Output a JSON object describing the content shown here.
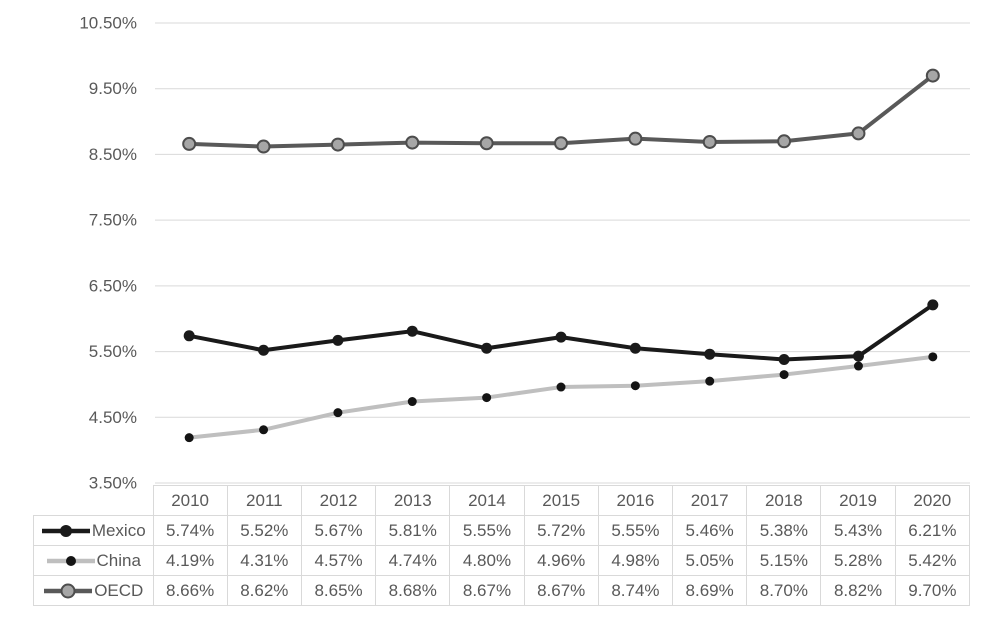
{
  "chart_data": {
    "type": "line",
    "title": "",
    "xlabel": "",
    "ylabel": "",
    "x": [
      "2010",
      "2011",
      "2012",
      "2013",
      "2014",
      "2015",
      "2016",
      "2017",
      "2018",
      "2019",
      "2020"
    ],
    "ylim": [
      3.5,
      10.5
    ],
    "grid": true,
    "legend_position": "table-rows-left",
    "yticks": [
      {
        "value": 10.5,
        "label": "10.50%"
      },
      {
        "value": 9.5,
        "label": "9.50%"
      },
      {
        "value": 8.5,
        "label": "8.50%"
      },
      {
        "value": 7.5,
        "label": "7.50%"
      },
      {
        "value": 6.5,
        "label": "6.50%"
      },
      {
        "value": 5.5,
        "label": "5.50%"
      },
      {
        "value": 4.5,
        "label": "4.50%"
      },
      {
        "value": 3.5,
        "label": "3.50%"
      }
    ],
    "series": [
      {
        "name": "Mexico",
        "values": [
          5.74,
          5.52,
          5.67,
          5.81,
          5.55,
          5.72,
          5.55,
          5.46,
          5.38,
          5.43,
          6.21
        ],
        "line_color": "#1a1a1a",
        "marker_fill": "#1a1a1a",
        "marker_stroke": "none",
        "marker_radius": 5.5,
        "line_width": 4
      },
      {
        "name": "China",
        "values": [
          4.19,
          4.31,
          4.57,
          4.74,
          4.8,
          4.96,
          4.98,
          5.05,
          5.15,
          5.28,
          5.42
        ],
        "line_color": "#bfbfbf",
        "marker_fill": "#141414",
        "marker_stroke": "none",
        "marker_radius": 4.5,
        "line_width": 4
      },
      {
        "name": "OECD",
        "values": [
          8.66,
          8.62,
          8.65,
          8.68,
          8.67,
          8.67,
          8.74,
          8.69,
          8.7,
          8.82,
          9.7
        ],
        "line_color": "#595959",
        "marker_fill": "#a6a6a6",
        "marker_stroke": "#4d4d4d",
        "marker_radius": 6,
        "line_width": 4
      }
    ]
  },
  "table": {
    "columns": [
      "2010",
      "2011",
      "2012",
      "2013",
      "2014",
      "2015",
      "2016",
      "2017",
      "2018",
      "2019",
      "2020"
    ],
    "rows": [
      {
        "label": "Mexico",
        "values": [
          "5.74%",
          "5.52%",
          "5.67%",
          "5.81%",
          "5.55%",
          "5.72%",
          "5.55%",
          "5.46%",
          "5.38%",
          "5.43%",
          "6.21%"
        ]
      },
      {
        "label": "China",
        "values": [
          "4.19%",
          "4.31%",
          "4.57%",
          "4.74%",
          "4.80%",
          "4.96%",
          "4.98%",
          "5.05%",
          "5.15%",
          "5.28%",
          "5.42%"
        ]
      },
      {
        "label": "OECD",
        "values": [
          "8.66%",
          "8.62%",
          "8.65%",
          "8.68%",
          "8.67%",
          "8.67%",
          "8.74%",
          "8.69%",
          "8.70%",
          "8.82%",
          "9.70%"
        ]
      }
    ]
  },
  "colors": {
    "axis_text": "#595959",
    "gridline": "#d9d9d9",
    "table_border": "#d9d9d9",
    "table_text": "#595959",
    "background": "#ffffff"
  }
}
